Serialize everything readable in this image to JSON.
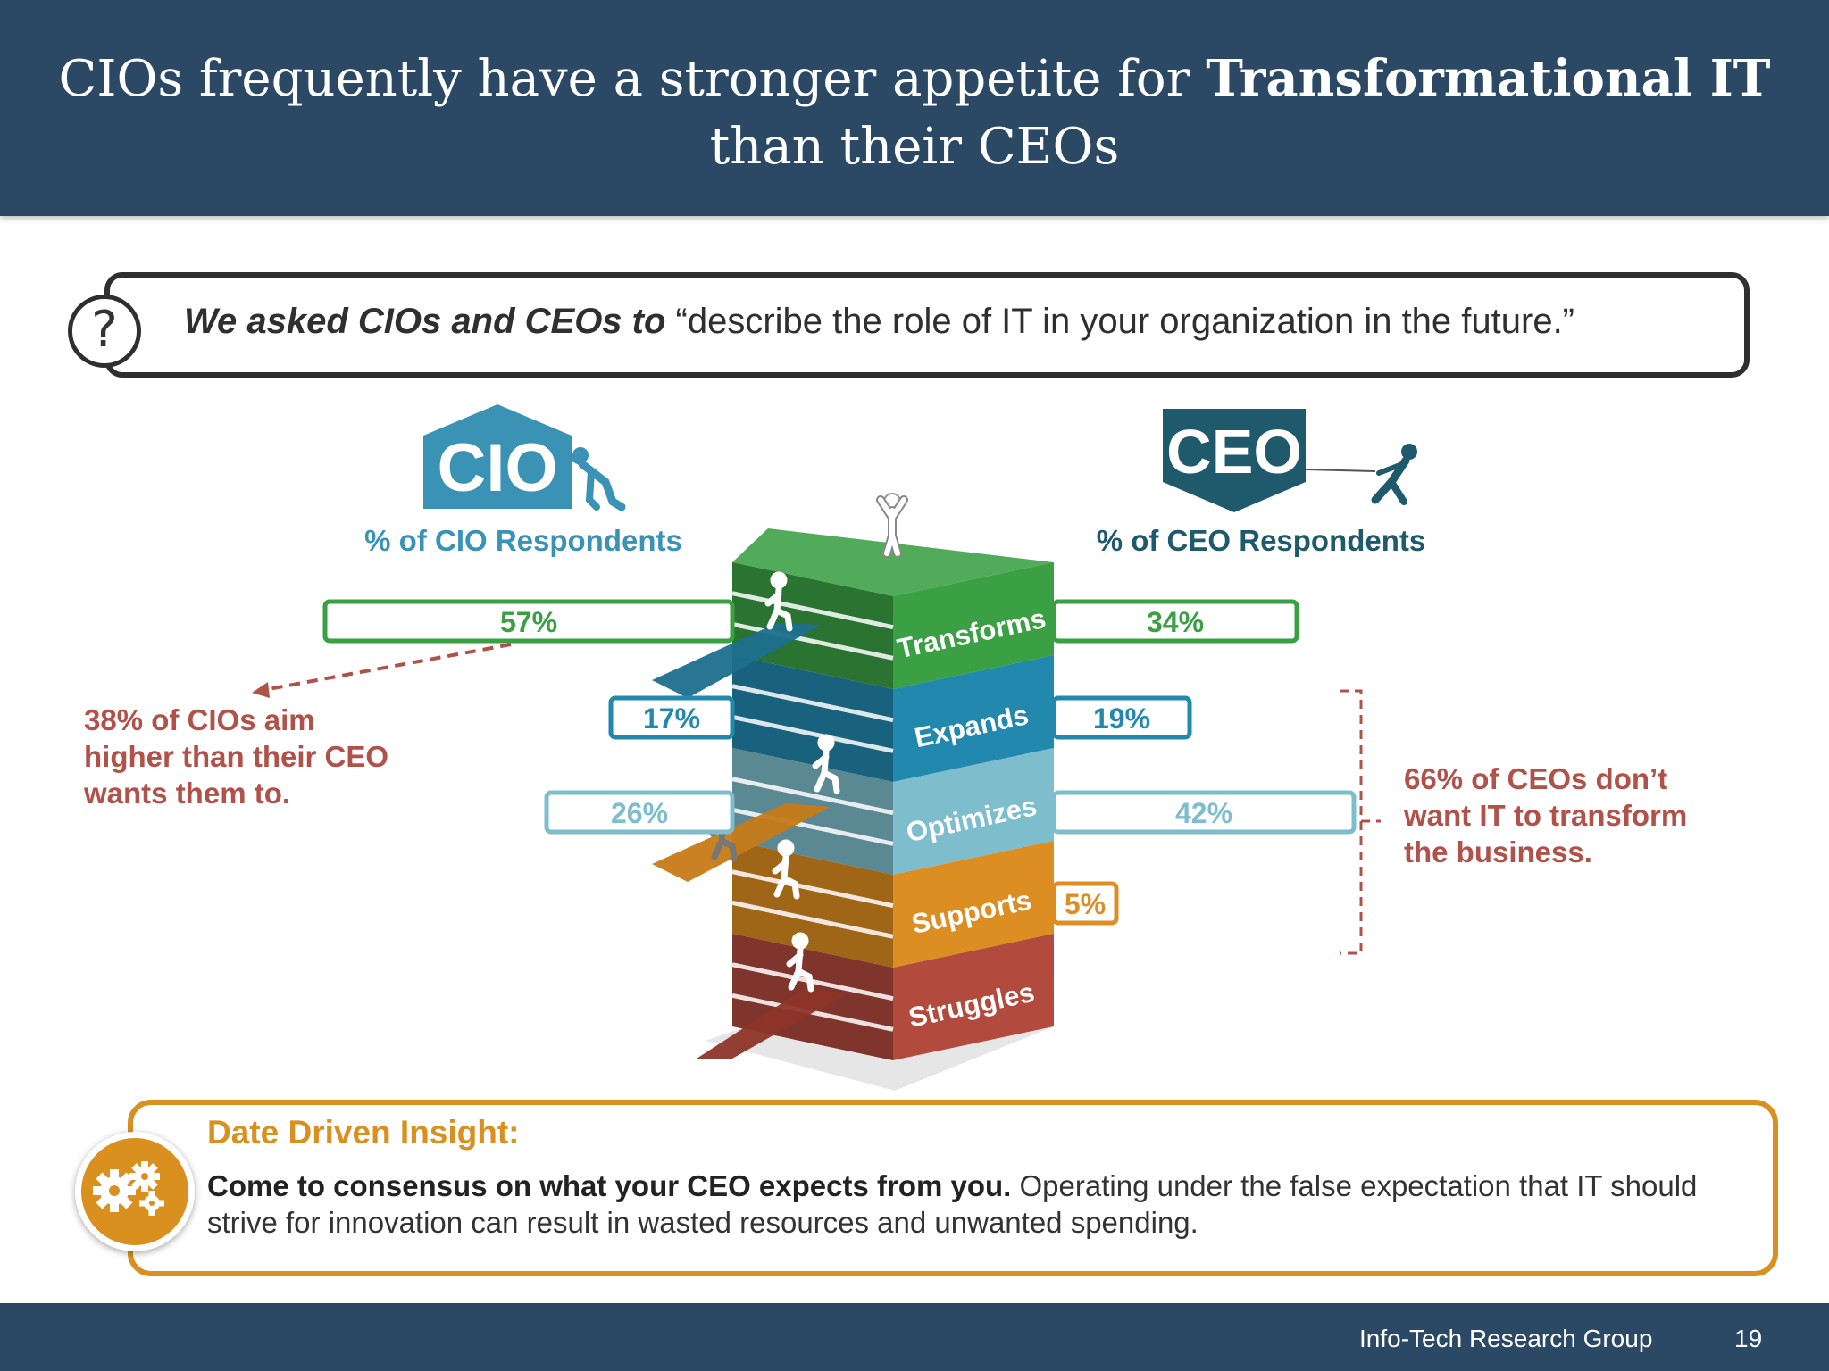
{
  "header": {
    "title_pre": "CIOs frequently have a stronger appetite for ",
    "title_bold": "Transformational IT",
    "title_post": " than their CEOs"
  },
  "question": {
    "icon": "question-mark-icon",
    "bold": "We asked CIOs and CEOs to",
    "text": " “describe the role of IT in your organization in the future.”"
  },
  "cio": {
    "logo": "CIO",
    "label": "% of CIO Respondents",
    "color": "#3a93b4"
  },
  "ceo": {
    "logo": "CEO",
    "label": "% of CEO Respondents",
    "color": "#1e5a6c"
  },
  "chart_data": {
    "type": "bar",
    "categories": [
      "Transforms",
      "Expands",
      "Optimizes",
      "Supports",
      "Struggles"
    ],
    "series": [
      {
        "name": "% of CIO Respondents",
        "values": [
          57,
          17,
          26,
          null,
          null
        ],
        "labels": [
          "57%",
          "17%",
          "26%",
          "",
          ""
        ]
      },
      {
        "name": "% of CEO Respondents",
        "values": [
          34,
          19,
          42,
          5,
          null
        ],
        "labels": [
          "34%",
          "19%",
          "42%",
          "5%",
          ""
        ]
      }
    ],
    "colors": [
      "#3aa043",
      "#2288ad",
      "#7dbdcc",
      "#dd8e22",
      "#b24a3d"
    ],
    "annotations": [
      "38% of CIOs aim higher than their CEO wants them to.",
      "66% of CEOs don’t want IT to transform the business."
    ]
  },
  "notes": {
    "cio": [
      "38% of CIOs aim",
      "higher than their CEO",
      "wants them to."
    ],
    "ceo": [
      "66% of CEOs don’t",
      "want IT to transform",
      "the business."
    ]
  },
  "insight": {
    "title": "Date Driven Insight:",
    "bold": "Come to consensus on what your CEO expects from you.",
    "text": " Operating under the false expectation that IT should strive for innovation can result in wasted resources and unwanted spending.",
    "icon": "gears-icon"
  },
  "footer": {
    "org": "Info-Tech Research Group",
    "page": "19"
  }
}
